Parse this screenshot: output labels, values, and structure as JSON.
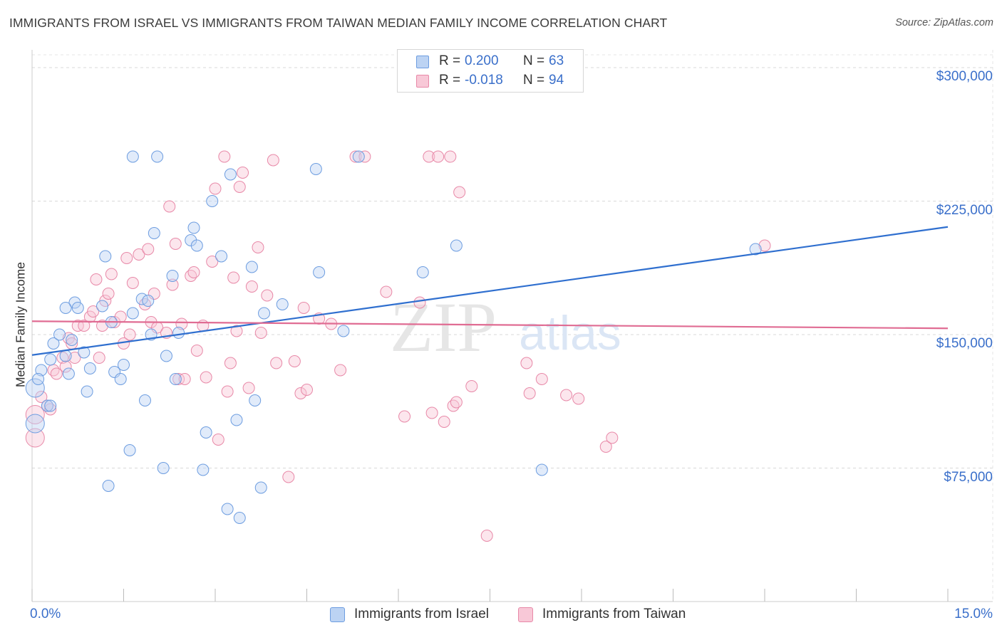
{
  "chart_data": {
    "type": "scatter",
    "title": "IMMIGRANTS FROM ISRAEL VS IMMIGRANTS FROM TAIWAN MEDIAN FAMILY INCOME CORRELATION CHART",
    "source": "Source: ZipAtlas.com",
    "xlabel": "",
    "ylabel": "Median Family Income",
    "xlim": [
      0.0,
      15.0
    ],
    "ylim": [
      0,
      310000
    ],
    "x_tick_labels": {
      "min": "0.0%",
      "max": "15.0%"
    },
    "y_ticks": [
      {
        "value": 75000,
        "label": "$75,000"
      },
      {
        "value": 150000,
        "label": "$150,000"
      },
      {
        "value": 225000,
        "label": "$225,000"
      },
      {
        "value": 300000,
        "label": "$300,000"
      }
    ],
    "grid": true,
    "watermark": "ZIPatlas",
    "legend": {
      "r_label": "R =",
      "n_label": "N =",
      "entries": [
        {
          "name": "Immigrants from Israel",
          "r": "0.200",
          "n": "63",
          "color": "#6d9de0",
          "fill": "#bcd3f3"
        },
        {
          "name": "Immigrants from Taiwan",
          "r": "-0.018",
          "n": "94",
          "color": "#e889a8",
          "fill": "#f8c8d7"
        }
      ]
    },
    "series": [
      {
        "name": "Immigrants from Israel",
        "color": "#6d9de0",
        "trend": {
          "x": [
            0.0,
            15.0
          ],
          "y": [
            138500,
            210500
          ],
          "color": "#2f6fcf"
        },
        "points": [
          [
            0.05,
            120000
          ],
          [
            0.05,
            100000
          ],
          [
            0.15,
            130000
          ],
          [
            0.25,
            110000
          ],
          [
            0.3,
            136000
          ],
          [
            0.35,
            145000
          ],
          [
            0.45,
            150000
          ],
          [
            0.55,
            138000
          ],
          [
            0.6,
            128000
          ],
          [
            0.65,
            147000
          ],
          [
            0.7,
            168000
          ],
          [
            0.75,
            165000
          ],
          [
            0.85,
            140000
          ],
          [
            0.9,
            118000
          ],
          [
            0.95,
            131000
          ],
          [
            1.15,
            166000
          ],
          [
            1.2,
            194000
          ],
          [
            1.25,
            65000
          ],
          [
            1.3,
            157000
          ],
          [
            1.35,
            129000
          ],
          [
            1.45,
            125000
          ],
          [
            1.5,
            133000
          ],
          [
            1.6,
            85000
          ],
          [
            1.65,
            162000
          ],
          [
            1.65,
            250000
          ],
          [
            1.8,
            170000
          ],
          [
            1.85,
            113000
          ],
          [
            1.9,
            169000
          ],
          [
            1.95,
            150000
          ],
          [
            2.0,
            207000
          ],
          [
            2.05,
            250000
          ],
          [
            2.15,
            75000
          ],
          [
            2.2,
            138000
          ],
          [
            2.3,
            183000
          ],
          [
            2.35,
            125000
          ],
          [
            2.4,
            151000
          ],
          [
            2.6,
            203000
          ],
          [
            2.65,
            210000
          ],
          [
            2.7,
            200000
          ],
          [
            2.8,
            74000
          ],
          [
            2.85,
            95000
          ],
          [
            2.95,
            225000
          ],
          [
            3.1,
            194000
          ],
          [
            3.2,
            52000
          ],
          [
            3.25,
            240000
          ],
          [
            3.35,
            102000
          ],
          [
            3.4,
            47000
          ],
          [
            3.6,
            188000
          ],
          [
            3.65,
            113000
          ],
          [
            3.75,
            64000
          ],
          [
            3.8,
            162000
          ],
          [
            4.1,
            167000
          ],
          [
            4.65,
            243000
          ],
          [
            4.7,
            185000
          ],
          [
            5.1,
            152000
          ],
          [
            5.35,
            250000
          ],
          [
            6.4,
            185000
          ],
          [
            6.95,
            200000
          ],
          [
            8.35,
            74000
          ],
          [
            11.85,
            198000
          ],
          [
            0.3,
            110000
          ],
          [
            0.1,
            125000
          ],
          [
            0.55,
            165000
          ]
        ]
      },
      {
        "name": "Immigrants from Taiwan",
        "color": "#e889a8",
        "trend": {
          "x": [
            0.0,
            15.0
          ],
          "y": [
            157500,
            153500
          ],
          "color": "#e06c93"
        },
        "points": [
          [
            0.05,
            92000
          ],
          [
            0.05,
            105000
          ],
          [
            0.15,
            115000
          ],
          [
            0.25,
            110000
          ],
          [
            0.3,
            108000
          ],
          [
            0.35,
            130000
          ],
          [
            0.4,
            128000
          ],
          [
            0.5,
            137000
          ],
          [
            0.55,
            132000
          ],
          [
            0.6,
            148000
          ],
          [
            0.65,
            145000
          ],
          [
            0.7,
            137000
          ],
          [
            0.75,
            155000
          ],
          [
            0.85,
            155000
          ],
          [
            0.95,
            160000
          ],
          [
            1.0,
            163000
          ],
          [
            1.05,
            181000
          ],
          [
            1.1,
            137000
          ],
          [
            1.15,
            155000
          ],
          [
            1.2,
            169000
          ],
          [
            1.25,
            173000
          ],
          [
            1.3,
            184000
          ],
          [
            1.35,
            157000
          ],
          [
            1.45,
            160000
          ],
          [
            1.5,
            145000
          ],
          [
            1.55,
            193000
          ],
          [
            1.6,
            150000
          ],
          [
            1.65,
            179000
          ],
          [
            1.75,
            195000
          ],
          [
            1.85,
            167000
          ],
          [
            1.9,
            198000
          ],
          [
            1.95,
            157000
          ],
          [
            2.0,
            173000
          ],
          [
            2.05,
            154000
          ],
          [
            2.2,
            151000
          ],
          [
            2.25,
            222000
          ],
          [
            2.3,
            178000
          ],
          [
            2.35,
            201000
          ],
          [
            2.4,
            125000
          ],
          [
            2.45,
            156000
          ],
          [
            2.5,
            125000
          ],
          [
            2.6,
            183000
          ],
          [
            2.65,
            185000
          ],
          [
            2.7,
            141000
          ],
          [
            2.8,
            155000
          ],
          [
            2.85,
            126000
          ],
          [
            2.95,
            191000
          ],
          [
            3.0,
            232000
          ],
          [
            3.05,
            91000
          ],
          [
            3.15,
            250000
          ],
          [
            3.2,
            118000
          ],
          [
            3.25,
            134000
          ],
          [
            3.3,
            182000
          ],
          [
            3.35,
            152000
          ],
          [
            3.4,
            233000
          ],
          [
            3.45,
            241000
          ],
          [
            3.55,
            120000
          ],
          [
            3.6,
            177000
          ],
          [
            3.7,
            199000
          ],
          [
            3.75,
            151000
          ],
          [
            3.85,
            172000
          ],
          [
            3.95,
            248000
          ],
          [
            4.0,
            134000
          ],
          [
            4.2,
            70000
          ],
          [
            4.3,
            135000
          ],
          [
            4.4,
            117000
          ],
          [
            4.45,
            165000
          ],
          [
            4.5,
            119000
          ],
          [
            4.7,
            159000
          ],
          [
            4.9,
            156000
          ],
          [
            5.05,
            130000
          ],
          [
            5.3,
            250000
          ],
          [
            5.45,
            250000
          ],
          [
            5.8,
            174000
          ],
          [
            6.1,
            104000
          ],
          [
            6.35,
            168000
          ],
          [
            6.5,
            250000
          ],
          [
            6.55,
            106000
          ],
          [
            6.65,
            250000
          ],
          [
            6.75,
            101000
          ],
          [
            6.85,
            250000
          ],
          [
            6.9,
            110000
          ],
          [
            6.95,
            112000
          ],
          [
            7.0,
            230000
          ],
          [
            7.2,
            121000
          ],
          [
            7.45,
            37000
          ],
          [
            8.1,
            134000
          ],
          [
            8.15,
            117000
          ],
          [
            8.35,
            125000
          ],
          [
            8.75,
            116000
          ],
          [
            8.95,
            114000
          ],
          [
            9.4,
            87000
          ],
          [
            9.5,
            92000
          ],
          [
            12.0,
            200000
          ]
        ]
      }
    ]
  }
}
